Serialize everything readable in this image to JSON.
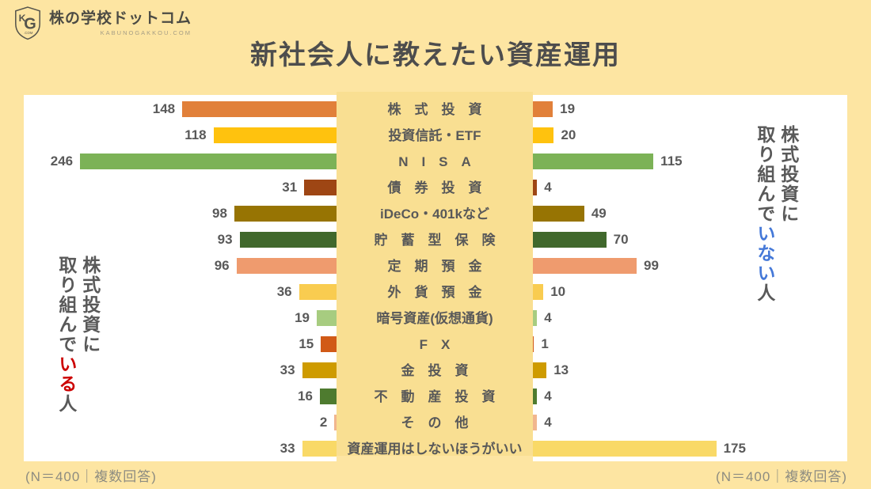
{
  "logo": {
    "monogram_k": "K",
    "monogram_g": "G",
    "monogram_com": ".COM",
    "brand": "株の学校ドットコム",
    "domain": "KABUNOGAKKOU.COM"
  },
  "title": "新社会人に教えたい資産運用",
  "left_panel": {
    "caption": "(N＝400｜複数回答)",
    "group_label": {
      "line1": "株式投資に",
      "line2_prefix": "取り組んで",
      "line2_highlight": "いる",
      "line2_suffix": "人"
    }
  },
  "right_panel": {
    "caption": "(N＝400｜複数回答)",
    "group_label": {
      "line1": "株式投資に",
      "line2_prefix": "取り組んで",
      "line2_highlight": "いない",
      "line2_suffix": "人"
    }
  },
  "chart_data": {
    "type": "bar",
    "orientation": "horizontal-diverging-butterfly",
    "axis_max": 300,
    "grid": false,
    "categories": [
      "株式投資",
      "投資信託・ETF",
      "NISA",
      "債券投資",
      "iDeCo・401kなど",
      "貯蓄型保険",
      "定期預金",
      "外貨預金",
      "暗号資産(仮想通貨)",
      "FX",
      "金投資",
      "不動産投資",
      "その他",
      "資産運用はしないほうがいい"
    ],
    "category_display": [
      "株　式　投　資",
      "投資信託・ETF",
      "N　I　S　A",
      "債　券　投　資",
      "iDeCo・401kなど",
      "貯　蓄　型　保　険",
      "定　期　預　金",
      "外　貨　預　金",
      "暗号資産(仮想通貨)",
      "F　X",
      "金　投　資",
      "不　動　産　投　資",
      "そ　の　他",
      "資産運用はしないほうがいい"
    ],
    "series": [
      {
        "name": "株式投資に取り組んでいる人",
        "side": "left",
        "values": [
          148,
          118,
          246,
          31,
          98,
          93,
          96,
          36,
          19,
          15,
          33,
          16,
          2,
          33
        ]
      },
      {
        "name": "株式投資に取り組んでいない人",
        "side": "right",
        "values": [
          19,
          20,
          115,
          4,
          49,
          70,
          99,
          10,
          4,
          1,
          13,
          4,
          4,
          175
        ]
      }
    ],
    "bar_colors": [
      "#E1803A",
      "#FFC20E",
      "#7CB257",
      "#9E4614",
      "#977403",
      "#40682C",
      "#EF9B6E",
      "#F9CC50",
      "#A7CC80",
      "#D15A17",
      "#CE9B00",
      "#4E7B2F",
      "#F1B68E",
      "#F9D967"
    ]
  },
  "colors": {
    "page_bg": "#FDE5A2",
    "strip_bg": "#F9DF92",
    "panel_bg": "#FFFFFF",
    "text": "#595959",
    "title": "#4D4D4D",
    "caption": "#8D8C81",
    "highlight_left": "#CC0000",
    "highlight_right": "#4478D8"
  }
}
